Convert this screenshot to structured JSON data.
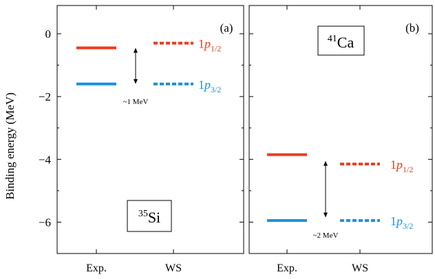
{
  "chart_data": [
    {
      "type": "level-scheme",
      "panel_label": "(a)",
      "nucleus": {
        "mass": "35",
        "symbol": "Si"
      },
      "ylabel": "Binding energy (MeV)",
      "ylim": [
        -7.0,
        0.9
      ],
      "yticks": [
        0,
        -2,
        -4,
        -6
      ],
      "ytick_labels": [
        "0",
        "−2",
        "−4",
        "−6"
      ],
      "categories": [
        "Exp.",
        "WS"
      ],
      "series": [
        {
          "name": "1p1/2",
          "label_base": "1",
          "label_italic": "p",
          "label_sub": "1/2",
          "color": "#ee3a1c",
          "values": [
            -0.45,
            -0.3
          ]
        },
        {
          "name": "1p3/2",
          "label_base": "1",
          "label_italic": "p",
          "label_sub": "3/2",
          "color": "#1a90e0",
          "values": [
            -1.6,
            -1.6
          ]
        }
      ],
      "arrow": {
        "from": -0.45,
        "to": -1.6
      },
      "annotation": "~1 MeV"
    },
    {
      "type": "level-scheme",
      "panel_label": "(b)",
      "nucleus": {
        "mass": "41",
        "symbol": "Ca"
      },
      "ylim": [
        -7.0,
        0.9
      ],
      "yticks": [
        0,
        -2,
        -4,
        -6
      ],
      "categories": [
        "Exp.",
        "WS"
      ],
      "series": [
        {
          "name": "1p1/2",
          "label_base": "1",
          "label_italic": "p",
          "label_sub": "1/2",
          "color": "#ee3a1c",
          "values": [
            -3.85,
            -4.15
          ]
        },
        {
          "name": "1p3/2",
          "label_base": "1",
          "label_italic": "p",
          "label_sub": "3/2",
          "color": "#1a90e0",
          "values": [
            -5.95,
            -5.95
          ]
        }
      ],
      "arrow": {
        "from": -4.05,
        "to": -5.85
      },
      "annotation": "~2 MeV"
    }
  ]
}
